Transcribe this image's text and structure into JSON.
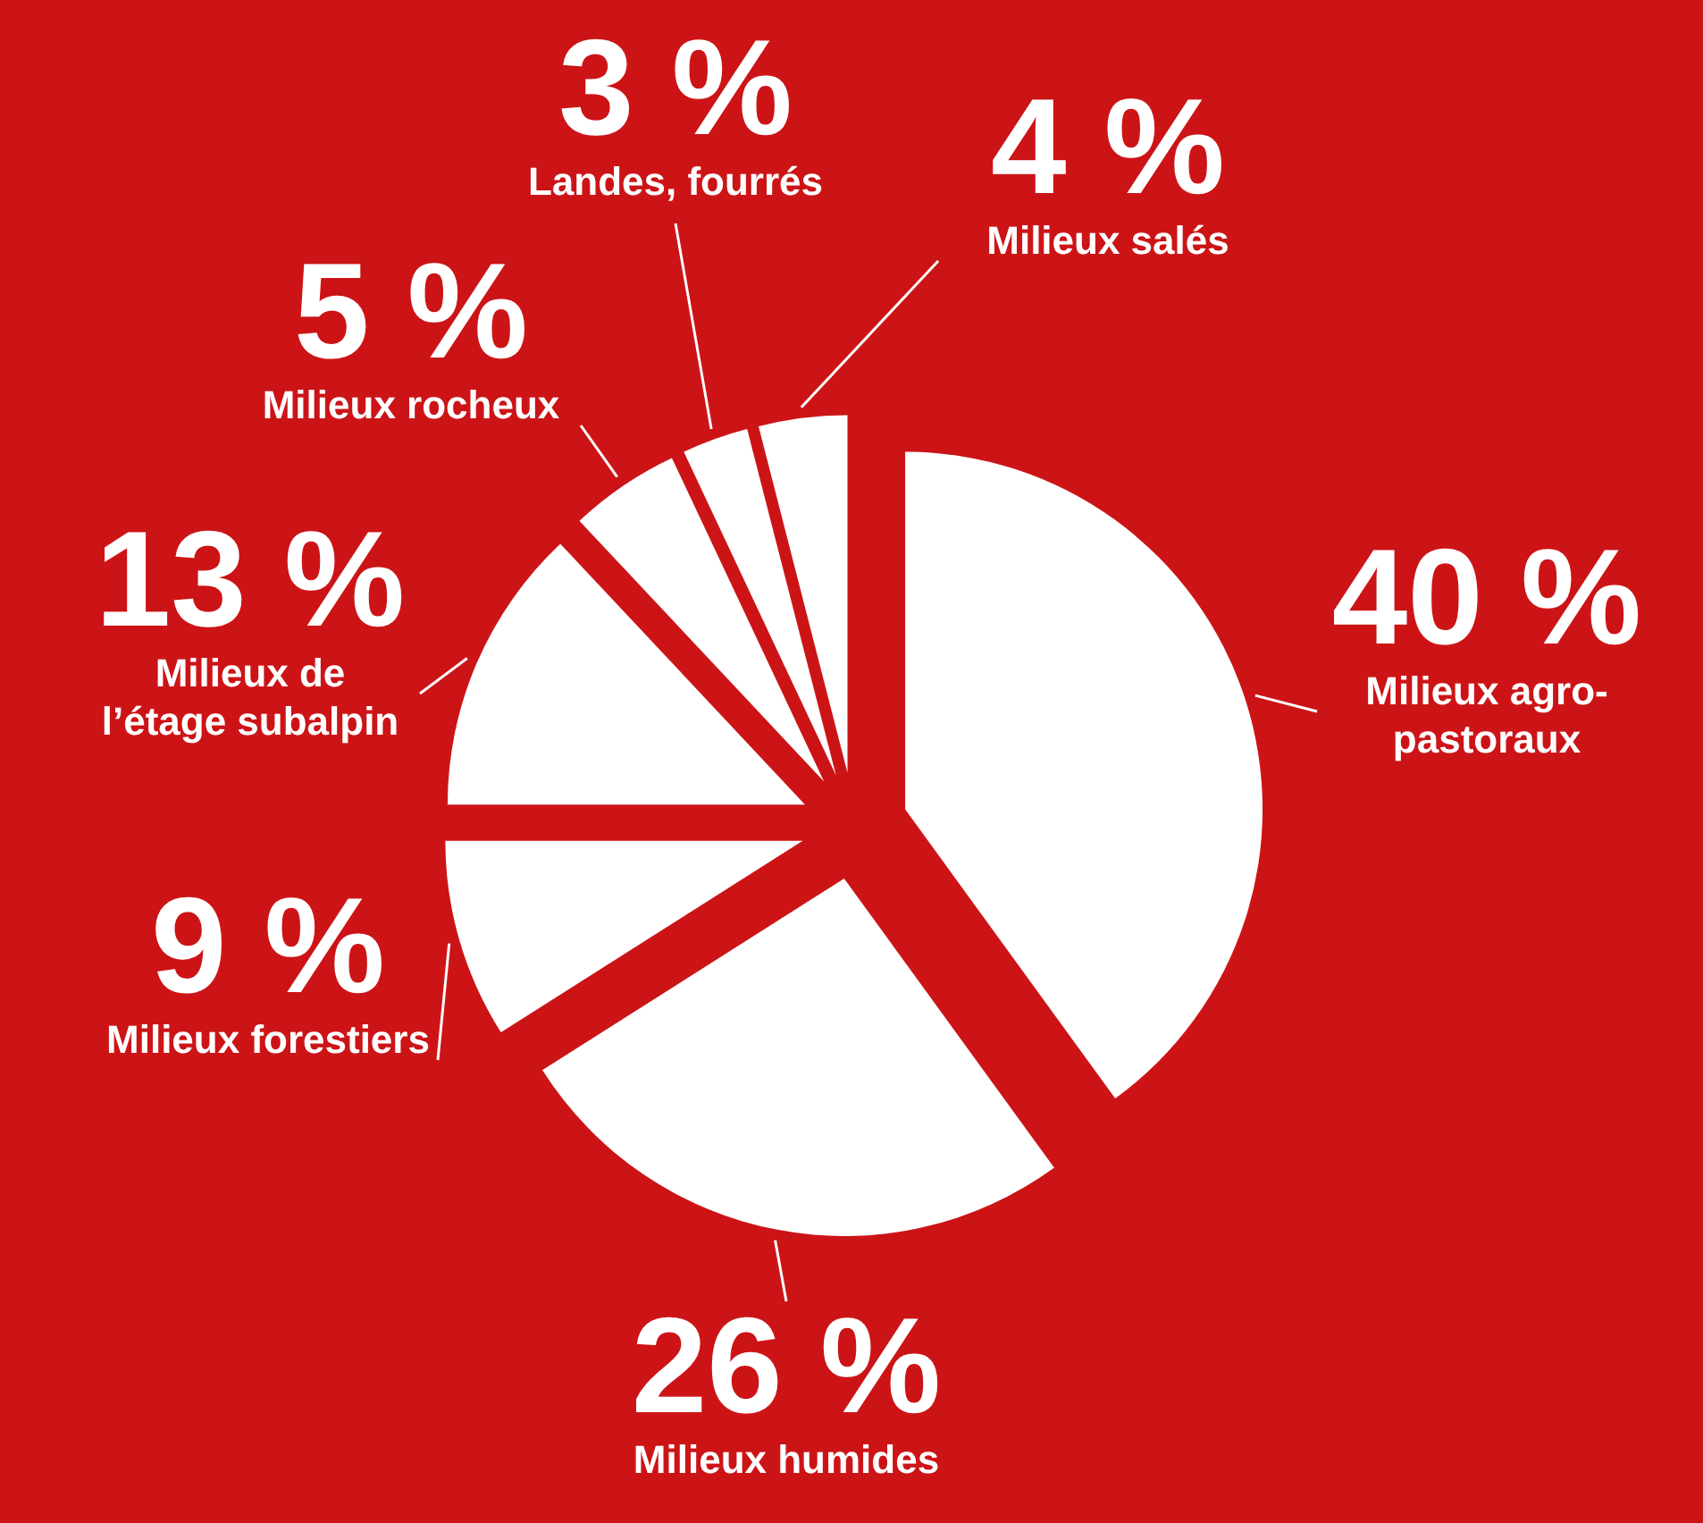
{
  "chart_data": {
    "type": "pie",
    "categories": [
      "Milieux agro-pastoraux",
      "Milieux humides",
      "Milieux forestiers",
      "Milieux de l’étage subalpin",
      "Milieux rocheux",
      "Landes, fourrés",
      "Milieux salés"
    ],
    "values": [
      40,
      26,
      9,
      13,
      5,
      3,
      4
    ],
    "value_labels": [
      "40 %",
      "26 %",
      "9 %",
      "13 %",
      "5 %",
      "3 %",
      "4 %"
    ],
    "colors": [
      "#ffffff",
      "#ffffff",
      "#ffffff",
      "#ffffff",
      "#ffffff",
      "#ffffff",
      "#ffffff"
    ]
  }
}
